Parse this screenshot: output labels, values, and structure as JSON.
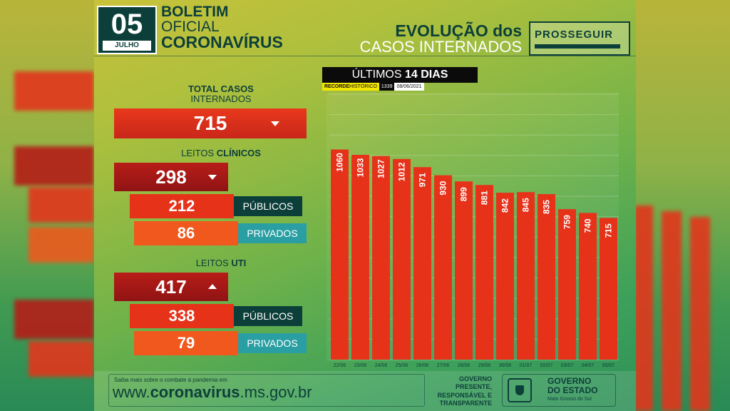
{
  "header": {
    "day": "05",
    "month": "JULHO",
    "title_line1": "BOLETIM",
    "title_line2": "OFICIAL",
    "title_line3": "CORONAVÍRUS",
    "evo_line1": "EVOLUÇÃO dos",
    "evo_line2": "CASOS INTERNADOS",
    "brand": "PROSSEGUIR"
  },
  "stats": {
    "total_label_bold": "TOTAL CASOS",
    "total_label_sub": "INTERNADOS",
    "total_value": "715",
    "clinicos_label_pre": "LEITOS ",
    "clinicos_label_bold": "CLÍNICOS",
    "clinicos_value": "298",
    "clinicos_publicos": "212",
    "clinicos_privados": "86",
    "uti_label_pre": "LEITOS ",
    "uti_label_bold": "UTI",
    "uti_value": "417",
    "uti_publicos": "338",
    "uti_privados": "79",
    "publicos_label": "PÚBLICOS",
    "privados_label": "PRIVADOS"
  },
  "chart_header": {
    "title_pre": "ÚLTIMOS ",
    "title_bold": "14 DIAS",
    "record_label_bold": "RECORDE",
    "record_label": " HISTÓRICO",
    "record_value": "1339",
    "record_date": "08/06/2021"
  },
  "chart_data": {
    "type": "bar",
    "categories": [
      "22/06",
      "23/06",
      "24/06",
      "25/06",
      "26/06",
      "27/06",
      "28/06",
      "29/06",
      "30/06",
      "01/07",
      "02/07",
      "03/07",
      "04/07",
      "05/07"
    ],
    "values": [
      1060,
      1033,
      1027,
      1012,
      971,
      930,
      899,
      881,
      842,
      845,
      835,
      759,
      740,
      715
    ],
    "ylim": [
      0,
      1339
    ],
    "grid": true,
    "bar_color": "#e7321a"
  },
  "footer": {
    "small_text": "Saiba mais sobre o combate à pandemia em",
    "url_pre": "www.",
    "url_bold": "coronavirus",
    "url_post": ".ms.gov.br",
    "gov_text_1": "GOVERNO",
    "gov_text_2": "PRESENTE,",
    "gov_text_3": "RESPONSÁVEL E",
    "gov_text_4": "TRANSPARENTE",
    "gov_name_1": "GOVERNO",
    "gov_name_2": "DO ESTADO",
    "gov_sub": "Mato Grosso do Sul"
  }
}
